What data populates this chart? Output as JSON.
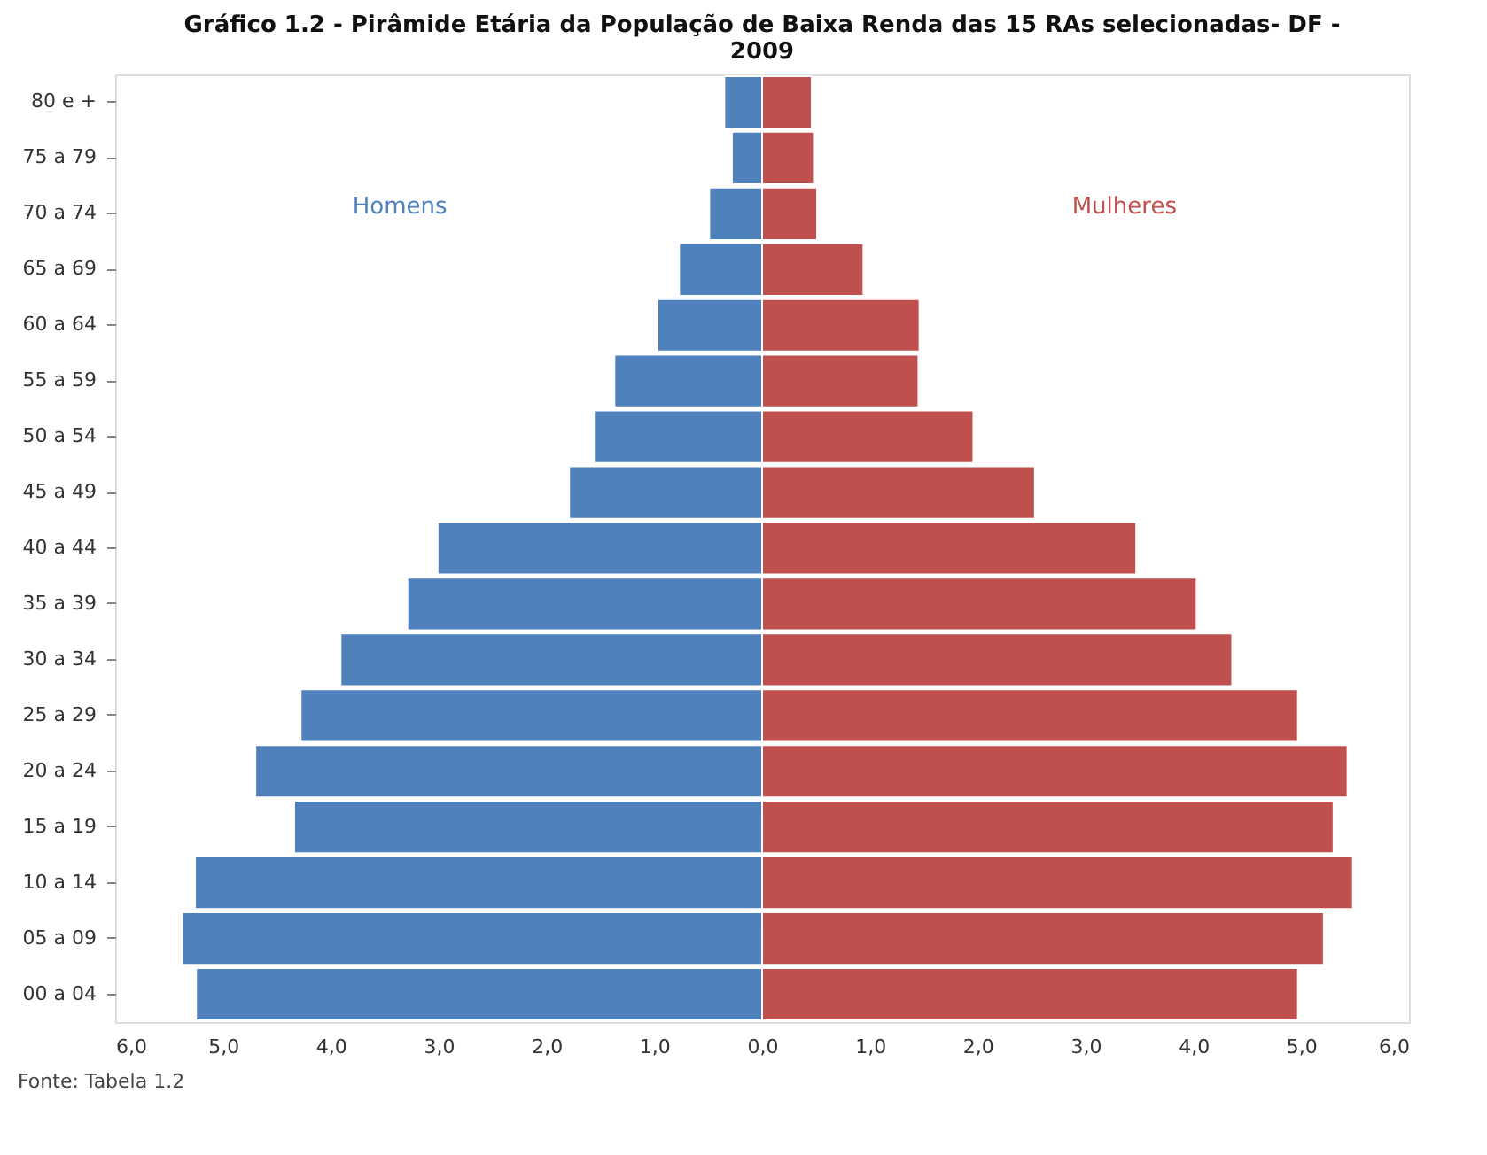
{
  "chart_data": {
    "type": "bar",
    "orientation": "horizontal",
    "title": "Gráfico  1.2 - Pirâmide Etária da População de Baixa Renda das 15 RAs selecionadas- DF - 2009",
    "categories": [
      "80 e +",
      "75 a 79",
      "70 a 74",
      "65 a 69",
      "60 a 64",
      "55 a 59",
      "50 a 54",
      "45 a 49",
      "40 a 44",
      "35 a 39",
      "30 a 34",
      "25 a 29",
      "20 a 24",
      "15 a 19",
      "10 a 14",
      "05 a 09",
      "00 a 04"
    ],
    "series": [
      {
        "name": "Homens",
        "color": "#4f81bd",
        "values": [
          -0.35,
          -0.28,
          -0.49,
          -0.77,
          -0.97,
          -1.37,
          -1.56,
          -1.79,
          -3.01,
          -3.29,
          -3.91,
          -4.28,
          -4.7,
          -4.34,
          -5.26,
          -5.38,
          -5.25
        ]
      },
      {
        "name": "Mulheres",
        "color": "#c0504d",
        "values": [
          0.46,
          0.48,
          0.51,
          0.94,
          1.46,
          1.45,
          1.96,
          2.53,
          3.47,
          4.03,
          4.36,
          4.97,
          5.43,
          5.3,
          5.48,
          5.21,
          4.97
        ]
      }
    ],
    "xlim": [
      -6,
      6
    ],
    "xticks": [
      {
        "value": -6,
        "label": "6,0"
      },
      {
        "value": -5,
        "label": "5,0"
      },
      {
        "value": -4,
        "label": "4,0"
      },
      {
        "value": -3,
        "label": "3,0"
      },
      {
        "value": -2,
        "label": "2,0"
      },
      {
        "value": -1,
        "label": "1,0"
      },
      {
        "value": 0,
        "label": "0,0"
      },
      {
        "value": 1,
        "label": "1,0"
      },
      {
        "value": 2,
        "label": "2,0"
      },
      {
        "value": 3,
        "label": "3,0"
      },
      {
        "value": 4,
        "label": "4,0"
      },
      {
        "value": 5,
        "label": "5,0"
      },
      {
        "value": 6,
        "label": "6,0"
      }
    ],
    "grid": false,
    "stacked": true,
    "annotations": [
      "Fonte: Tabela 1.2"
    ]
  }
}
